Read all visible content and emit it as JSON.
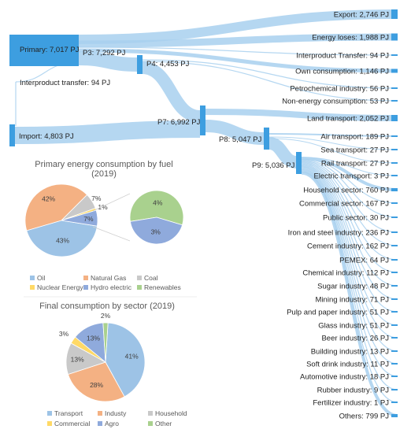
{
  "sankey": {
    "nodes": {
      "primary": "Primary: 7,017 PJ",
      "p3": "P3: 7,292 PJ",
      "p4": "P4: 4,453 PJ",
      "interproduct_left": "Interproduct transfer: 94 PJ",
      "import": "Import: 4,803 PJ",
      "p7": "P7: 6,992 PJ",
      "p8": "P8: 5,047 PJ",
      "p9": "P9: 5,036 PJ"
    },
    "outputs": [
      "Export: 2,746 PJ",
      "Energy loses: 1,988 PJ",
      "Interproduct Transfer: 94 PJ",
      "Own consumption: 1,146 PJ",
      "Petrochemical industry: 56 PJ",
      "Non-energy consumption: 53 PJ",
      "Land transport: 2,052 PJ",
      "Air transport: 189 PJ",
      "Sea transport: 27 PJ",
      "Rail transport: 27 PJ",
      "Electric transport: 3 PJ",
      "Household sector: 760 PJ",
      "Commercial sector: 167 PJ",
      "Public sector: 30 PJ",
      "Iron and steel industry: 236 PJ",
      "Cement industry: 162 PJ",
      "PEMEX: 64 PJ",
      "Chemical industry: 112 PJ",
      "Sugar industry: 48 PJ",
      "Mining industry: 71 PJ",
      "Pulp and paper industry: 51 PJ",
      "Glass industry: 51 PJ",
      "Beer industry: 26 PJ",
      "Building industry: 13 PJ",
      "Soft drink industry: 11 PJ",
      "Automotive industry: 18 PJ",
      "Rubber industry: 9 PJ",
      "Fertilizer industry: 1 PJ",
      "Others: 799 PJ"
    ]
  },
  "colors": {
    "flow": "#a8d0ef",
    "node": "#3d9ee0",
    "oil": "#9dc3e6",
    "natural_gas": "#f4b183",
    "coal": "#c9c9c9",
    "nuclear": "#ffd966",
    "hydro": "#8faadc",
    "renewables": "#a9d18e",
    "transport": "#9dc3e6",
    "industry": "#f4b183",
    "household": "#c9c9c9",
    "commercial": "#ffd966",
    "agro": "#8faadc",
    "other": "#a9d18e"
  },
  "chart_data": [
    {
      "type": "pie",
      "title": "Primary energy consumption by fuel",
      "subtitle": "(2019)",
      "categories": [
        "Oil",
        "Natural Gas",
        "Coal",
        "Nuclear Energy",
        "Hydro electric",
        "Renewables"
      ],
      "values": [
        43,
        42,
        7,
        1,
        7,
        0
      ],
      "labels": [
        "43%",
        "42%",
        "7%",
        "1%",
        "7%",
        ""
      ],
      "breakout": {
        "categories": [
          "Renewables",
          "Hydro electric"
        ],
        "values": [
          4,
          3
        ],
        "labels": [
          "4%",
          "3%"
        ]
      },
      "legend": "bottom"
    },
    {
      "type": "pie",
      "title": "Final consumption by sector (2019)",
      "categories": [
        "Transport",
        "Industy",
        "Household",
        "Commercial",
        "Agro",
        "Other"
      ],
      "values": [
        41,
        28,
        13,
        3,
        13,
        2
      ],
      "labels": [
        "41%",
        "28%",
        "13%",
        "3%",
        "13%",
        "2%"
      ],
      "legend": "bottom"
    }
  ]
}
